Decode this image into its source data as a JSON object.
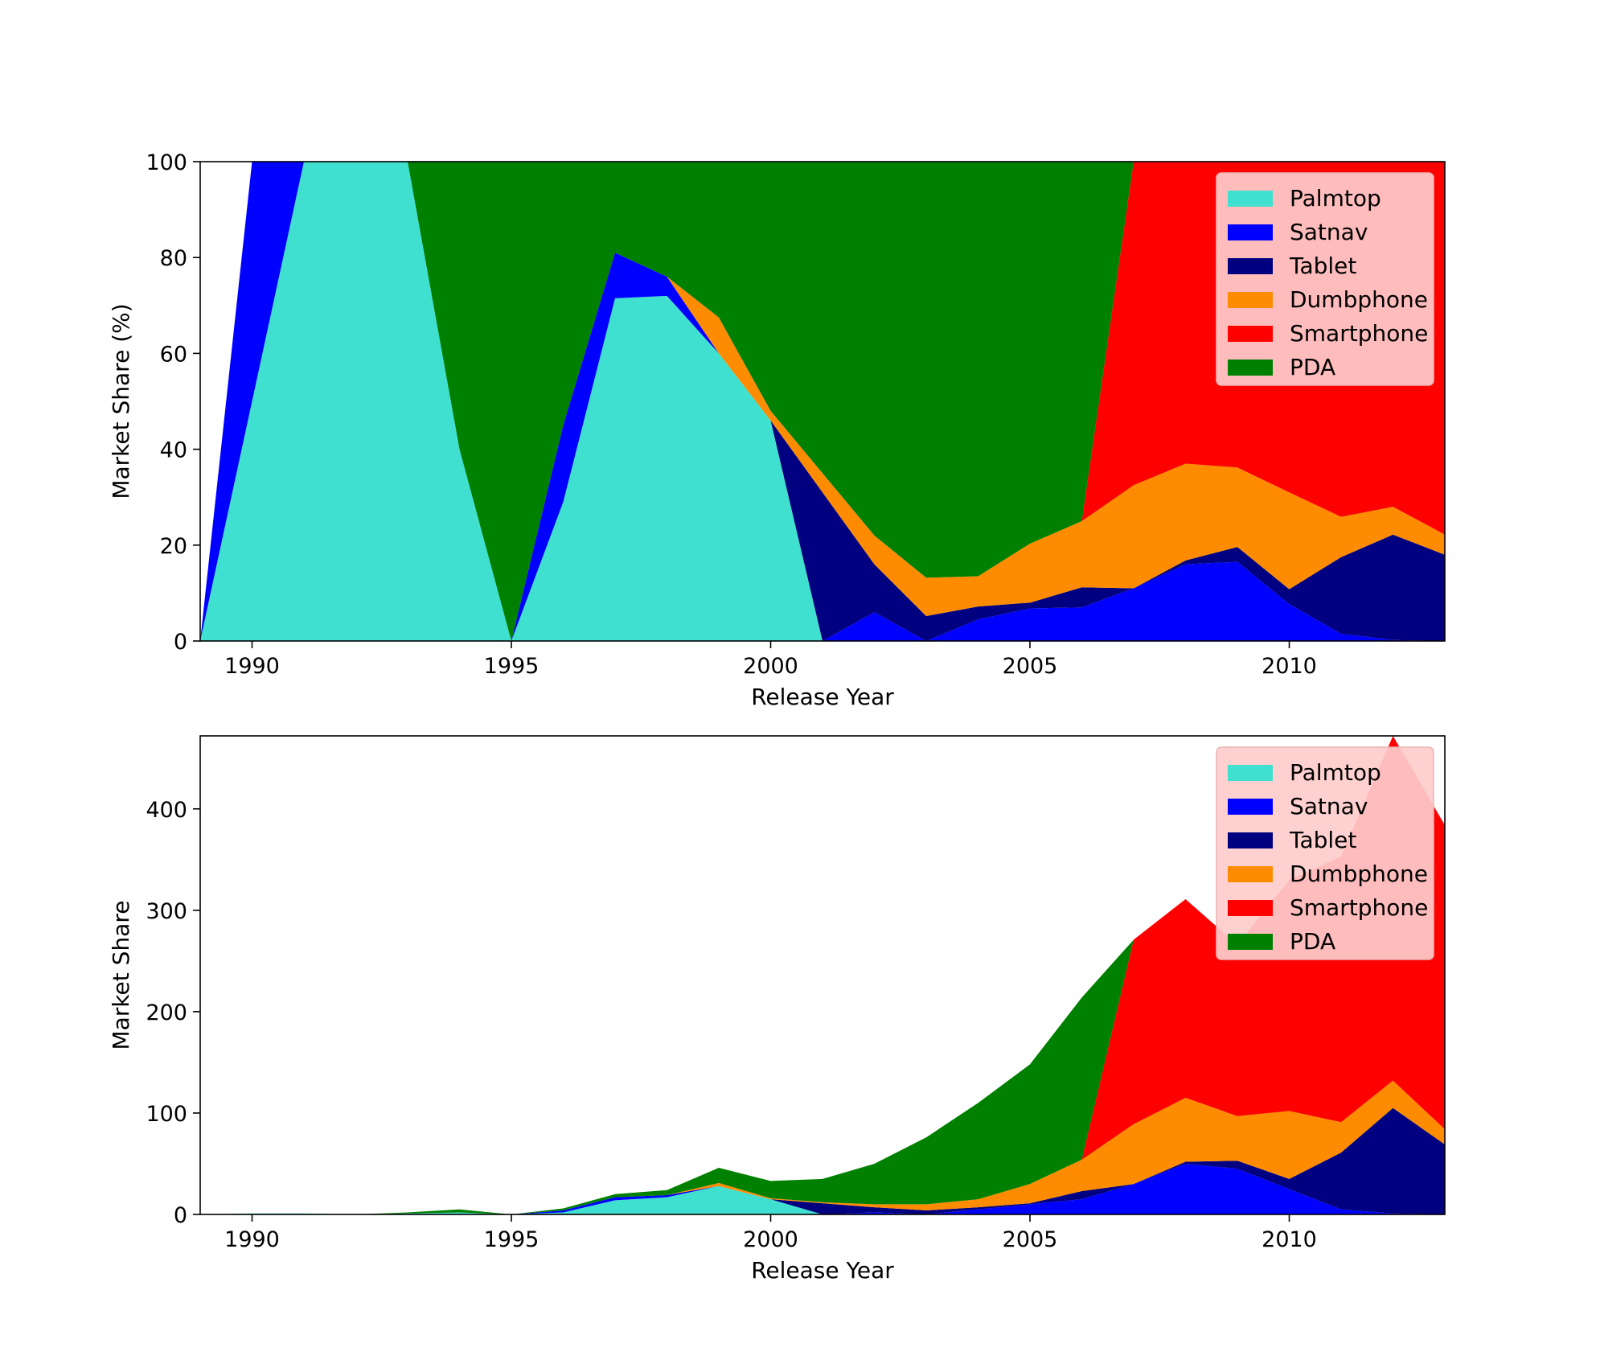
{
  "series_names": [
    "Palmtop",
    "Satnav",
    "Tablet",
    "Dumbphone",
    "Smartphone",
    "PDA"
  ],
  "colors": {
    "Palmtop": "#40e0d0",
    "Satnav": "#0000ff",
    "Tablet": "#000080",
    "Dumbphone": "#ff8c00",
    "Smartphone": "#ff0000",
    "PDA": "#008000",
    "legend_bg": "#ffcccc"
  },
  "chart_data": [
    {
      "type": "area",
      "stacked": true,
      "title": "",
      "xlabel": "Release Year",
      "ylabel": "Market Share (%)",
      "xlim": [
        1989,
        2013
      ],
      "ylim": [
        0,
        100
      ],
      "xticks": [
        1990,
        1995,
        2000,
        2005,
        2010
      ],
      "yticks": [
        0,
        20,
        40,
        60,
        80,
        100
      ],
      "legend": "top-right",
      "x": [
        1989,
        1990,
        1991,
        1992,
        1993,
        1994,
        1995,
        1996,
        1997,
        1998,
        1999,
        2000,
        2001,
        2002,
        2003,
        2004,
        2005,
        2006,
        2007,
        2008,
        2009,
        2010,
        2011,
        2012,
        2013
      ],
      "series": [
        {
          "name": "Palmtop",
          "values": [
            0,
            50,
            100,
            100,
            100,
            40,
            0,
            29,
            71.5,
            72,
            60,
            46,
            0,
            0,
            0,
            0,
            0,
            0,
            0,
            0,
            0,
            0,
            0,
            0,
            0
          ]
        },
        {
          "name": "Satnav",
          "values": [
            0,
            50,
            0,
            0,
            0,
            0,
            0,
            16,
            9.5,
            4,
            0,
            0,
            0,
            6,
            0,
            4.5,
            6.8,
            7,
            11,
            16,
            16.5,
            7.7,
            1.5,
            0.2,
            0
          ]
        },
        {
          "name": "Tablet",
          "values": [
            0,
            0,
            0,
            0,
            0,
            0,
            0,
            0,
            0,
            0,
            0,
            0,
            31,
            10,
            5.2,
            2.7,
            1.2,
            4.2,
            0,
            0.8,
            3.1,
            3.1,
            16,
            22,
            18
          ]
        },
        {
          "name": "Dumbphone",
          "values": [
            0,
            0,
            0,
            0,
            0,
            0,
            0,
            0,
            0,
            0,
            7.5,
            2,
            4,
            6,
            8,
            6.3,
            12.3,
            13.8,
            21.5,
            20.2,
            16.6,
            20.2,
            8.4,
            5.8,
            4.2
          ]
        },
        {
          "name": "Smartphone",
          "values": [
            0,
            0,
            0,
            0,
            0,
            0,
            0,
            0,
            0,
            0,
            0,
            0,
            0,
            0,
            0,
            0,
            0,
            0,
            67.5,
            63,
            63.8,
            69,
            74.1,
            72,
            77.8
          ]
        },
        {
          "name": "PDA",
          "values": [
            0,
            0,
            0,
            0,
            0,
            60,
            100,
            55,
            19,
            24,
            32.5,
            52,
            65,
            78,
            86.8,
            86.5,
            79.7,
            75,
            0,
            0,
            0,
            0,
            0,
            0,
            0
          ]
        }
      ]
    },
    {
      "type": "area",
      "stacked": true,
      "title": "",
      "xlabel": "Release Year",
      "ylabel": "Market Share",
      "xlim": [
        1989,
        2013
      ],
      "ylim": [
        0,
        472
      ],
      "xticks": [
        1990,
        1995,
        2000,
        2005,
        2010
      ],
      "yticks": [
        0,
        100,
        200,
        300,
        400
      ],
      "legend": "top-right",
      "x": [
        1989,
        1990,
        1991,
        1992,
        1993,
        1994,
        1995,
        1996,
        1997,
        1998,
        1999,
        2000,
        2001,
        2002,
        2003,
        2004,
        2005,
        2006,
        2007,
        2008,
        2009,
        2010,
        2011,
        2012,
        2013
      ],
      "series": [
        {
          "name": "Palmtop",
          "values": [
            0,
            1,
            1,
            0,
            1,
            2,
            0,
            2,
            14,
            17,
            28,
            15,
            0,
            0,
            0,
            0,
            0,
            0,
            0,
            0,
            0,
            0,
            0,
            0,
            0
          ]
        },
        {
          "name": "Satnav",
          "values": [
            0,
            0,
            0,
            0,
            0,
            0,
            0,
            2,
            3,
            2,
            0,
            0,
            0,
            2,
            0,
            5,
            10,
            15,
            30,
            50,
            45,
            25,
            5,
            1,
            0
          ]
        },
        {
          "name": "Tablet",
          "values": [
            0,
            0,
            0,
            0,
            0,
            0,
            0,
            0,
            0,
            0,
            0,
            0,
            11,
            5,
            4,
            2,
            1,
            8,
            0,
            2,
            8,
            10,
            56,
            104,
            69
          ]
        },
        {
          "name": "Dumbphone",
          "values": [
            0,
            0,
            0,
            0,
            0,
            0,
            0,
            0,
            0,
            0,
            3,
            1,
            1,
            3,
            6,
            8,
            19,
            31,
            59,
            63,
            44,
            67,
            30,
            27,
            15
          ]
        },
        {
          "name": "Smartphone",
          "values": [
            0,
            0,
            0,
            0,
            0,
            0,
            0,
            0,
            0,
            0,
            0,
            0,
            0,
            0,
            0,
            0,
            0,
            0,
            182,
            196,
            169,
            228,
            262,
            340,
            300
          ]
        },
        {
          "name": "PDA",
          "values": [
            0,
            0,
            0,
            0,
            1,
            3,
            0,
            2,
            3,
            5,
            15,
            17,
            23,
            40,
            66,
            95,
            118,
            160,
            0,
            0,
            0,
            0,
            0,
            0,
            0
          ]
        }
      ]
    }
  ]
}
